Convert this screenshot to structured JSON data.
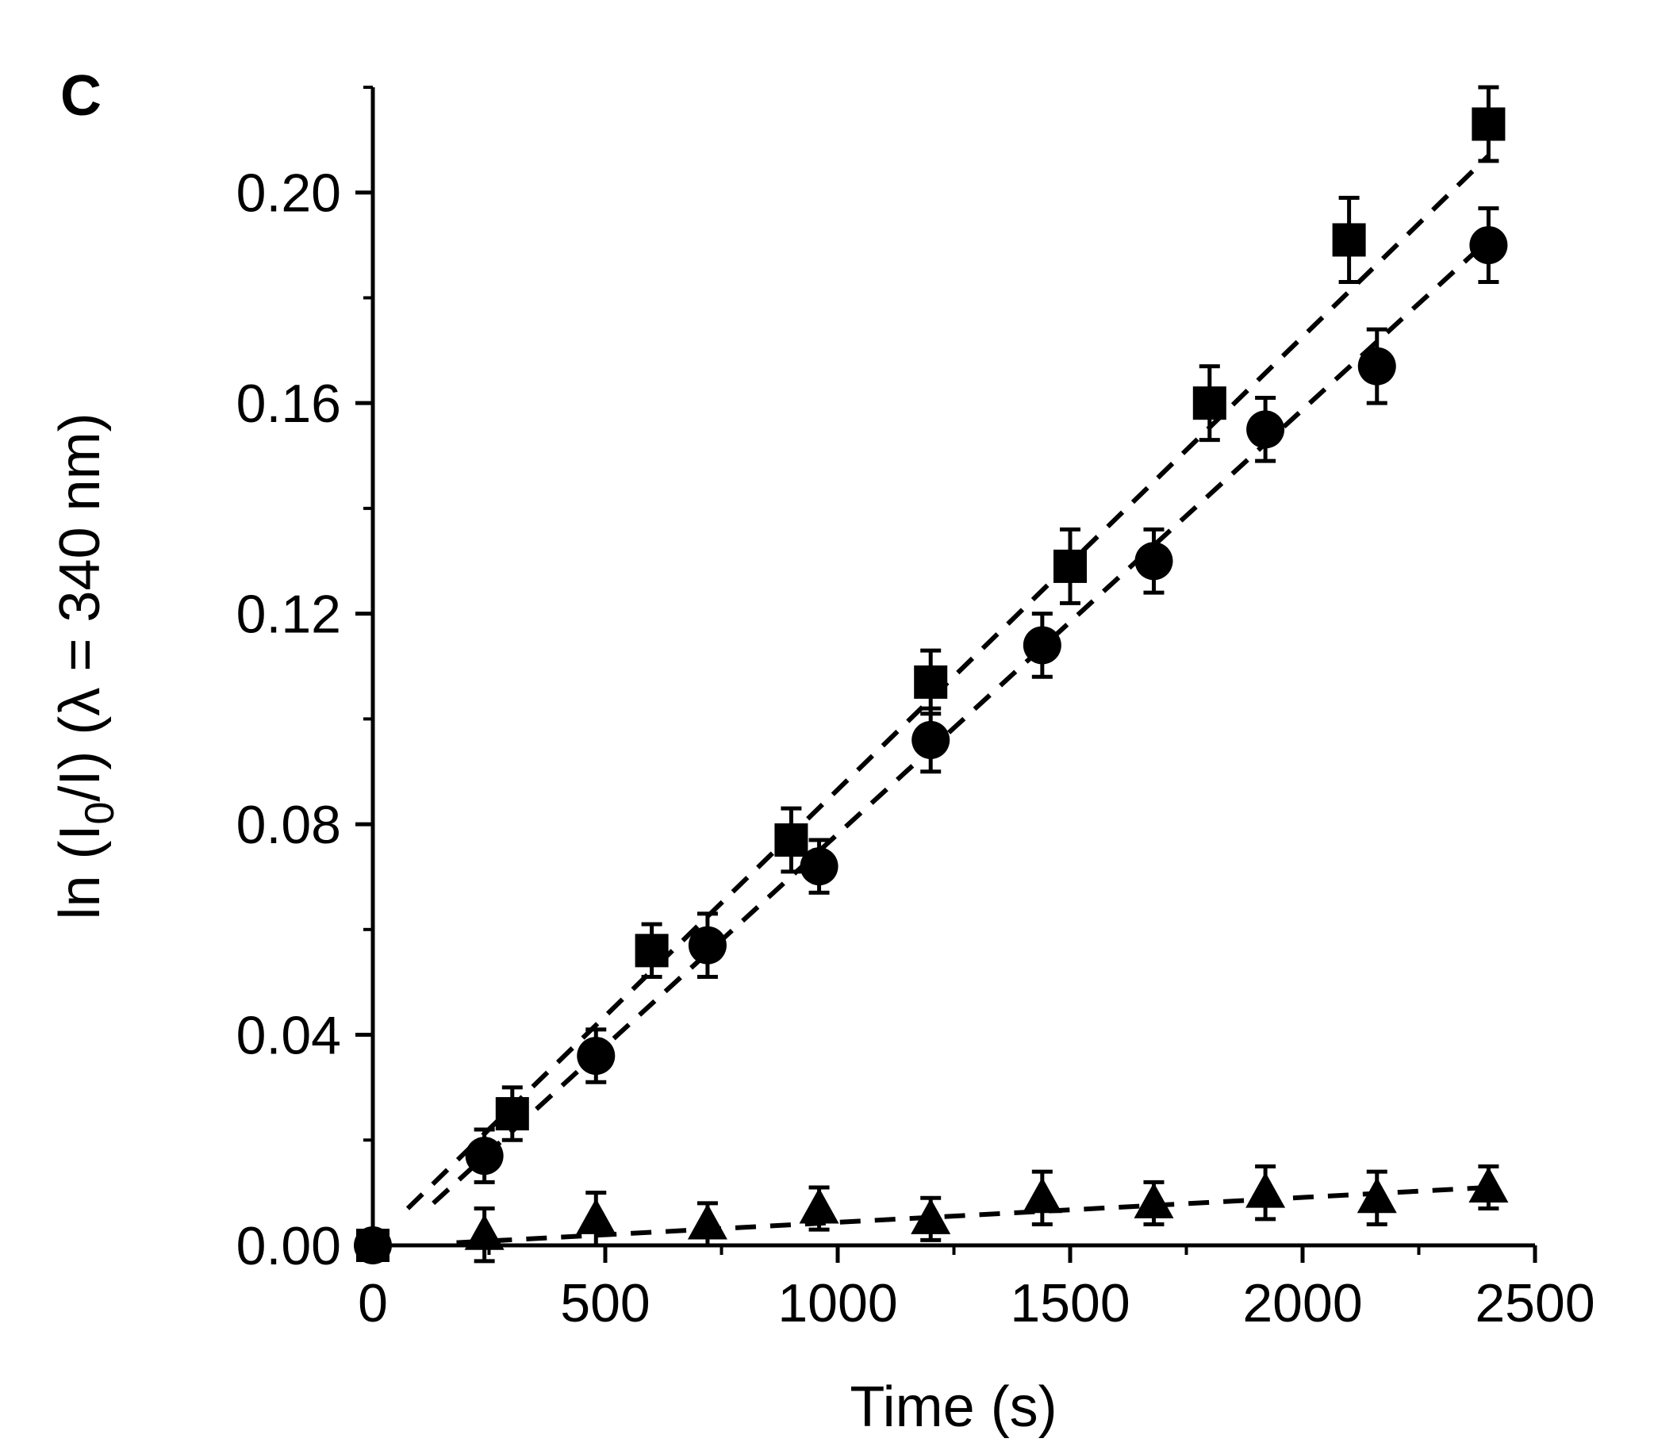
{
  "chart_data": {
    "type": "scatter",
    "panel_label": "C",
    "xlabel": "Time (s)",
    "ylabel": {
      "prefix": "ln (I",
      "subscript": "0",
      "suffix": "/I) (λ = 340 nm)"
    },
    "xlim": [
      0,
      2500
    ],
    "ylim": [
      0,
      0.22
    ],
    "x_ticks": [
      0,
      500,
      1000,
      1500,
      2000,
      2500
    ],
    "x_tick_labels": [
      "0",
      "500",
      "1000",
      "1500",
      "2000",
      "2500"
    ],
    "y_ticks": [
      0,
      0.04,
      0.08,
      0.12,
      0.16,
      0.2
    ],
    "y_tick_labels": [
      "0.00",
      "0.04",
      "0.08",
      "0.12",
      "0.16",
      "0.20"
    ],
    "grid": false,
    "series": [
      {
        "marker": "square",
        "x": [
          0,
          300,
          600,
          900,
          1200,
          1500,
          1800,
          2100,
          2400
        ],
        "y": [
          0.0,
          0.025,
          0.056,
          0.077,
          0.107,
          0.129,
          0.16,
          0.191,
          0.213
        ],
        "yerr": [
          0.002,
          0.005,
          0.005,
          0.006,
          0.006,
          0.007,
          0.007,
          0.008,
          0.007
        ],
        "fit": {
          "x": [
            75,
            2400
          ],
          "y": [
            0.007,
            0.207
          ]
        }
      },
      {
        "marker": "circle",
        "x": [
          0,
          240,
          480,
          720,
          960,
          1200,
          1440,
          1680,
          1920,
          2160,
          2400
        ],
        "y": [
          0.0,
          0.017,
          0.036,
          0.057,
          0.072,
          0.096,
          0.114,
          0.13,
          0.155,
          0.167,
          0.19
        ],
        "yerr": [
          0.002,
          0.005,
          0.005,
          0.006,
          0.005,
          0.006,
          0.006,
          0.006,
          0.006,
          0.007,
          0.007
        ],
        "fit": {
          "x": [
            130,
            2400
          ],
          "y": [
            0.008,
            0.191
          ]
        }
      },
      {
        "marker": "triangle",
        "x": [
          240,
          480,
          720,
          960,
          1200,
          1440,
          1680,
          1920,
          2160,
          2400
        ],
        "y": [
          0.002,
          0.005,
          0.004,
          0.007,
          0.005,
          0.009,
          0.008,
          0.01,
          0.009,
          0.011
        ],
        "yerr": [
          0.005,
          0.005,
          0.004,
          0.004,
          0.004,
          0.005,
          0.004,
          0.005,
          0.005,
          0.004
        ],
        "fit": {
          "x": [
            180,
            2400
          ],
          "y": [
            0.0005,
            0.011
          ]
        }
      }
    ]
  }
}
